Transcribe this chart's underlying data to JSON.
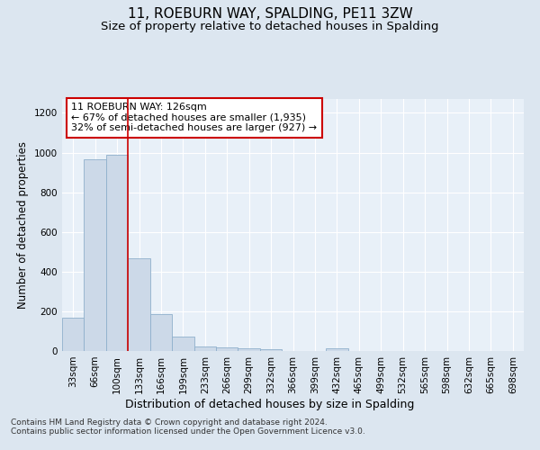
{
  "title": "11, ROEBURN WAY, SPALDING, PE11 3ZW",
  "subtitle": "Size of property relative to detached houses in Spalding",
  "xlabel": "Distribution of detached houses by size in Spalding",
  "ylabel": "Number of detached properties",
  "footnote": "Contains HM Land Registry data © Crown copyright and database right 2024.\nContains public sector information licensed under the Open Government Licence v3.0.",
  "categories": [
    "33sqm",
    "66sqm",
    "100sqm",
    "133sqm",
    "166sqm",
    "199sqm",
    "233sqm",
    "266sqm",
    "299sqm",
    "332sqm",
    "366sqm",
    "399sqm",
    "432sqm",
    "465sqm",
    "499sqm",
    "532sqm",
    "565sqm",
    "598sqm",
    "632sqm",
    "665sqm",
    "698sqm"
  ],
  "values": [
    170,
    965,
    990,
    465,
    185,
    73,
    23,
    16,
    13,
    10,
    0,
    0,
    13,
    0,
    0,
    0,
    0,
    0,
    0,
    0,
    0
  ],
  "bar_color": "#ccd9e8",
  "bar_edge_color": "#8fb0cc",
  "vline_x_idx": 2.5,
  "vline_color": "#cc0000",
  "annotation_line1": "11 ROEBURN WAY: 126sqm",
  "annotation_line2": "← 67% of detached houses are smaller (1,935)",
  "annotation_line3": "32% of semi-detached houses are larger (927) →",
  "annotation_box_color": "#ffffff",
  "annotation_box_edge_color": "#cc0000",
  "ylim": [
    0,
    1270
  ],
  "yticks": [
    0,
    200,
    400,
    600,
    800,
    1000,
    1200
  ],
  "bg_color": "#dce6f0",
  "plot_bg_color": "#e8f0f8",
  "grid_color": "#ffffff",
  "title_fontsize": 11,
  "subtitle_fontsize": 9.5,
  "xlabel_fontsize": 9,
  "ylabel_fontsize": 8.5,
  "tick_fontsize": 7.5,
  "annotation_fontsize": 8,
  "footnote_fontsize": 6.5
}
